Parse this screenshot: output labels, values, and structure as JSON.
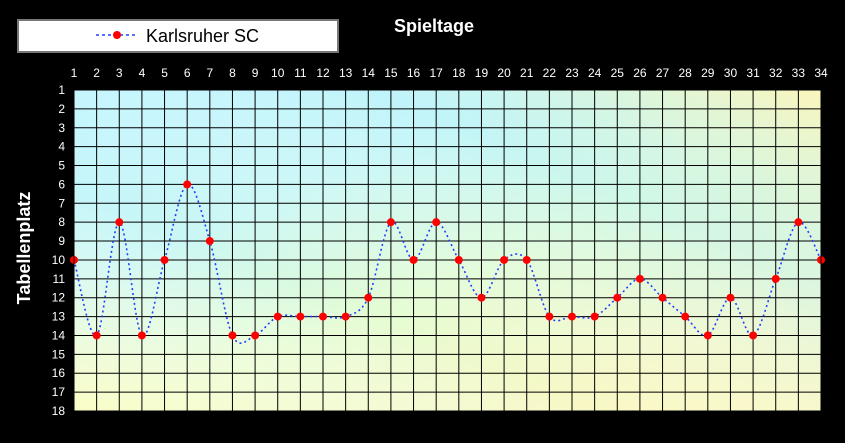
{
  "chart_data": {
    "type": "line",
    "title": "Spieltage",
    "ylabel": "Tabellenplatz",
    "xlabel": "",
    "x": [
      1,
      2,
      3,
      4,
      5,
      6,
      7,
      8,
      9,
      10,
      11,
      12,
      13,
      14,
      15,
      16,
      17,
      18,
      19,
      20,
      21,
      22,
      23,
      24,
      25,
      26,
      27,
      28,
      29,
      30,
      31,
      32,
      33,
      34
    ],
    "y_ticks": [
      1,
      2,
      3,
      4,
      5,
      6,
      7,
      8,
      9,
      10,
      11,
      12,
      13,
      14,
      15,
      16,
      17,
      18
    ],
    "ylim": [
      1,
      18
    ],
    "y_inverted": true,
    "grid": true,
    "legend_position": "top-left",
    "series": [
      {
        "name": "Karlsruher SC",
        "values": [
          10,
          14,
          8,
          14,
          10,
          6,
          9,
          14,
          14,
          13,
          13,
          13,
          13,
          12,
          8,
          10,
          8,
          10,
          12,
          10,
          10,
          13,
          13,
          13,
          12,
          11,
          12,
          13,
          14,
          12,
          14,
          11,
          8,
          10
        ]
      }
    ],
    "colors": {
      "background": "#000000",
      "line": "#1F3FFF",
      "marker": "#FF0000",
      "grid": "#000000",
      "text": "#FFFFFF"
    }
  }
}
